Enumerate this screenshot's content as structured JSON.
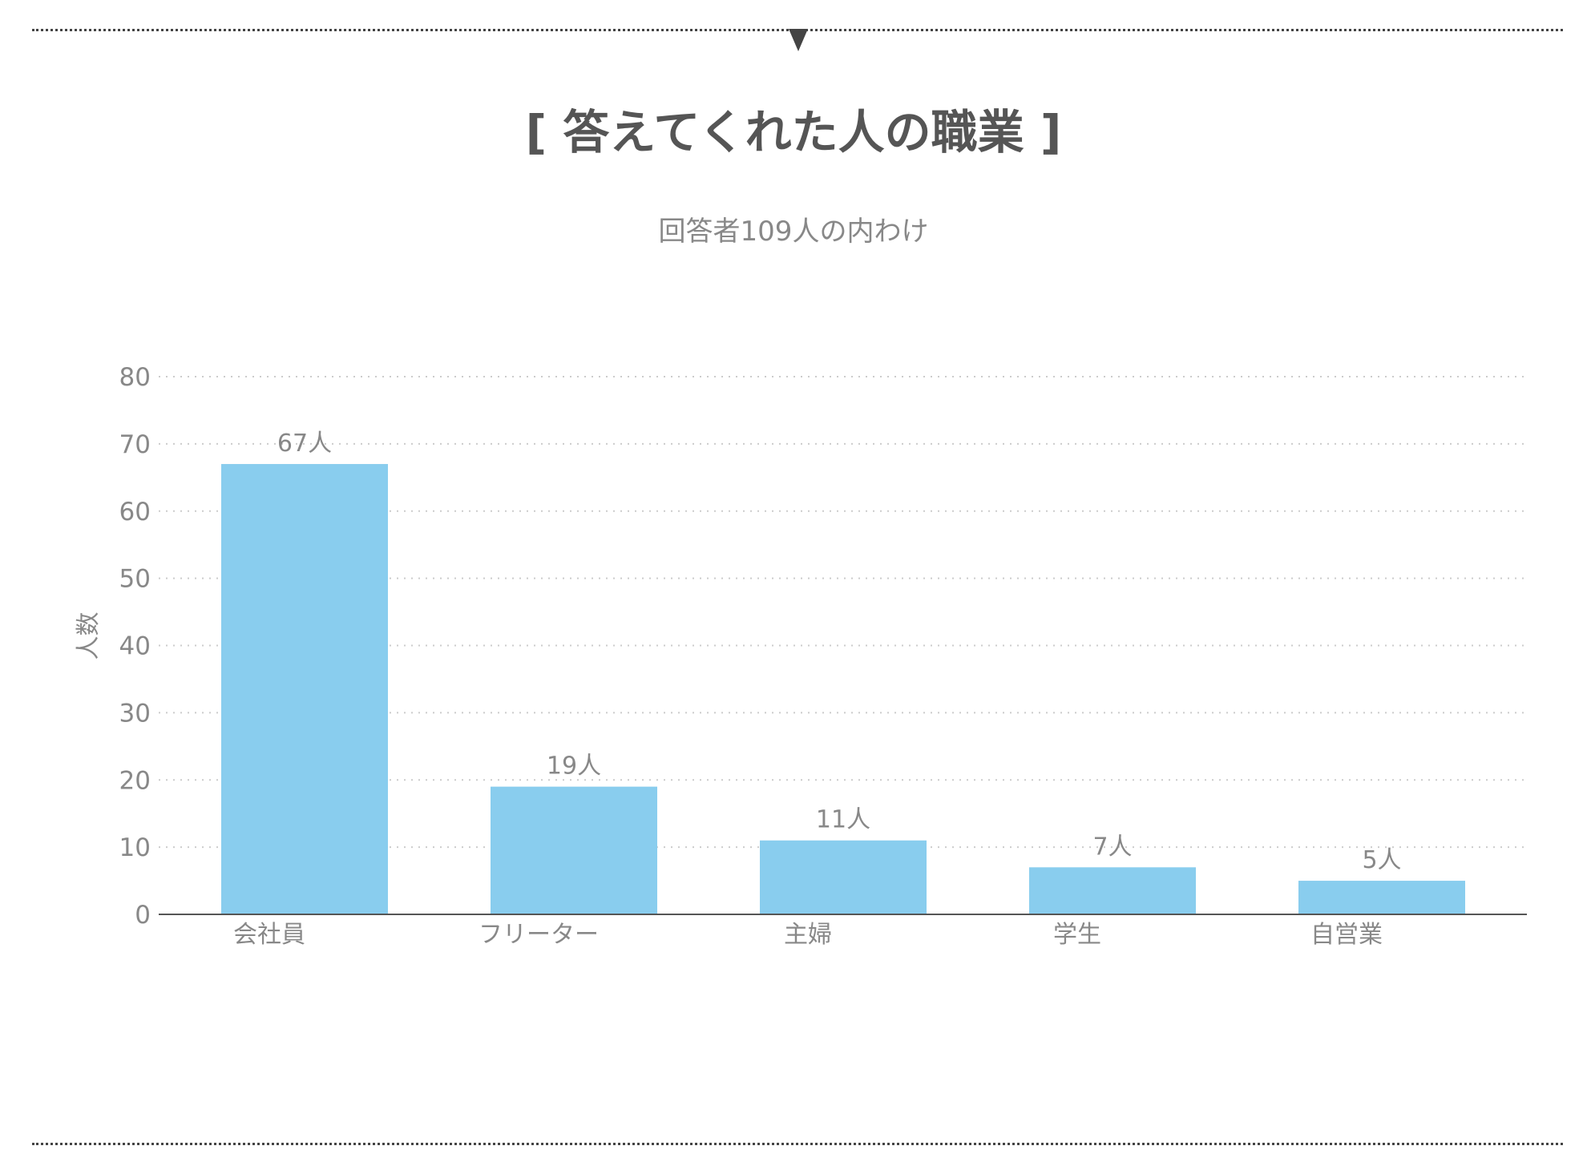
{
  "title": "[ 答えてくれた人の職業 ]",
  "subtitle": "回答者109人の内わけ",
  "colors": {
    "bar": "#89CDEE",
    "text": "#888888",
    "title": "#555555",
    "axis": "#555555",
    "grid": "#cccccc"
  },
  "chart_data": {
    "type": "bar",
    "categories": [
      "会社員",
      "フリーター",
      "主婦",
      "学生",
      "自営業"
    ],
    "values": [
      67,
      19,
      11,
      7,
      5
    ],
    "value_labels": [
      "67人",
      "19人",
      "11人",
      "7人",
      "5人"
    ],
    "ylabel": "人数",
    "xlabel": "",
    "ylim": [
      0,
      80
    ],
    "yticks": [
      0,
      10,
      20,
      30,
      40,
      50,
      60,
      70,
      80
    ],
    "grid": true,
    "legend": "none"
  }
}
